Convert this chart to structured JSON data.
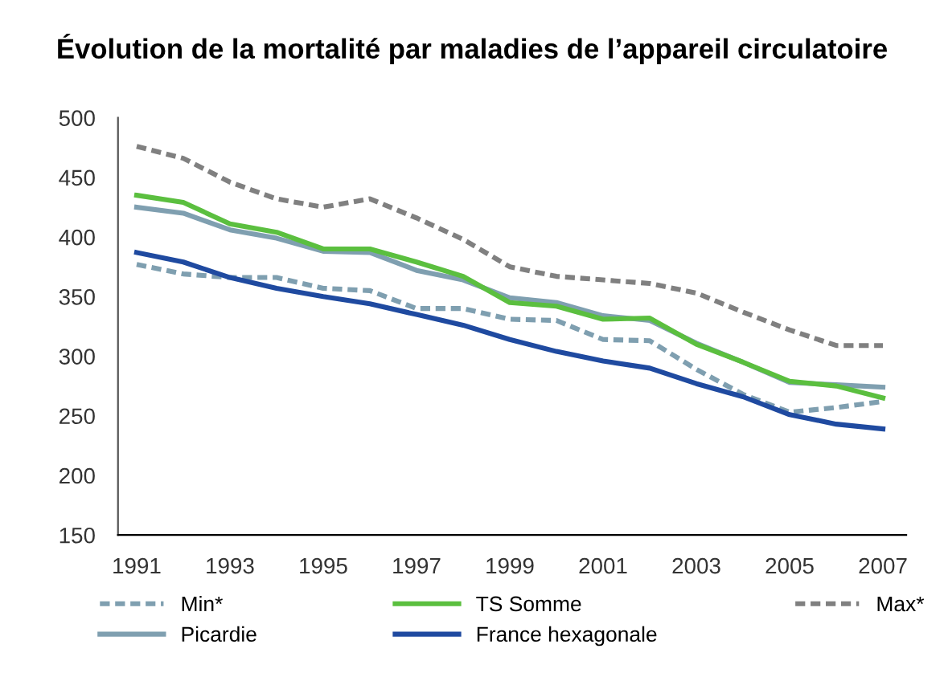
{
  "chart_data": {
    "type": "line",
    "title": "Évolution de la mortalité par maladies de l’appareil circulatoire",
    "x": [
      1991,
      1992,
      1993,
      1994,
      1995,
      1996,
      1997,
      1998,
      1999,
      2000,
      2001,
      2002,
      2003,
      2004,
      2005,
      2006,
      2007
    ],
    "series": [
      {
        "name": "Min*",
        "color": "#7f9fb0",
        "line_style": "dashed",
        "values": [
          377,
          369,
          366,
          366,
          357,
          355,
          340,
          340,
          331,
          330,
          314,
          313,
          289,
          268,
          253,
          257,
          262
        ]
      },
      {
        "name": "Picardie",
        "color": "#7f9fb0",
        "line_style": "solid",
        "values": [
          425,
          420,
          406,
          399,
          388,
          387,
          372,
          364,
          349,
          345,
          334,
          330,
          311,
          295,
          278,
          276,
          274
        ]
      },
      {
        "name": "TS Somme",
        "color": "#5bbf3f",
        "line_style": "solid",
        "values": [
          435,
          429,
          411,
          404,
          390,
          390,
          379,
          367,
          345,
          342,
          331,
          332,
          310,
          295,
          279,
          275,
          265
        ]
      },
      {
        "name": "France hexagonale",
        "color": "#1f4aa0",
        "line_style": "solid",
        "values": [
          387,
          379,
          366,
          357,
          350,
          344,
          335,
          326,
          314,
          304,
          296,
          290,
          277,
          266,
          251,
          243,
          239
        ]
      },
      {
        "name": "Max*",
        "color": "#808080",
        "line_style": "dashed",
        "values": [
          476,
          466,
          446,
          432,
          425,
          432,
          416,
          398,
          375,
          367,
          364,
          361,
          353,
          337,
          322,
          309,
          309
        ]
      }
    ],
    "xlim": [
      1990.6,
      2007.5
    ],
    "xticks": [
      1991,
      1993,
      1995,
      1997,
      1999,
      2001,
      2003,
      2005,
      2007
    ],
    "ylim": [
      150,
      500
    ],
    "yticks": [
      150,
      200,
      250,
      300,
      350,
      400,
      450,
      500
    ],
    "grid": false,
    "legend": "bottom",
    "marker": "none"
  }
}
